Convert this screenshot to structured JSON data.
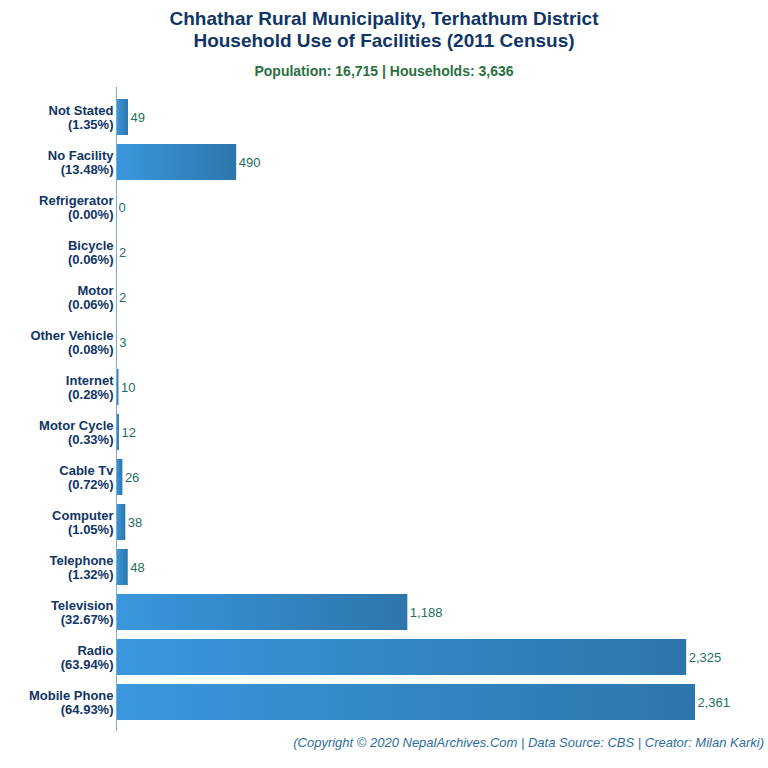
{
  "chart_data": {
    "type": "bar",
    "orientation": "horizontal",
    "title": "Chhathar Rural Municipality, Terhathum District\nHousehold Use of Facilities (2011 Census)",
    "subtitle": "Population: 16,715 | Households: 3,636",
    "caption": "(Copyright © 2020 NepalArchives.Com | Data Source: CBS | Creator: Milan Karki)",
    "categories": [
      "Not Stated\n(1.35%)",
      "No Facility\n(13.48%)",
      "Refrigerator\n(0.00%)",
      "Bicycle\n(0.06%)",
      "Motor\n(0.06%)",
      "Other Vehicle\n(0.08%)",
      "Internet\n(0.28%)",
      "Motor Cycle\n(0.33%)",
      "Cable Tv\n(0.72%)",
      "Computer\n(1.05%)",
      "Telephone\n(1.32%)",
      "Television\n(32.67%)",
      "Radio\n(63.94%)",
      "Mobile Phone\n(64.93%)"
    ],
    "values": [
      49,
      490,
      0,
      2,
      2,
      3,
      10,
      12,
      26,
      38,
      48,
      1188,
      2325,
      2361
    ],
    "value_labels": [
      "49",
      "490",
      "0",
      "2",
      "2",
      "3",
      "10",
      "12",
      "26",
      "38",
      "48",
      "1,188",
      "2,325",
      "2,361"
    ],
    "color": "#3a97dd",
    "xlim": [
      0,
      2361
    ],
    "data_labels": true,
    "tick_labels": "y",
    "grid": false
  }
}
